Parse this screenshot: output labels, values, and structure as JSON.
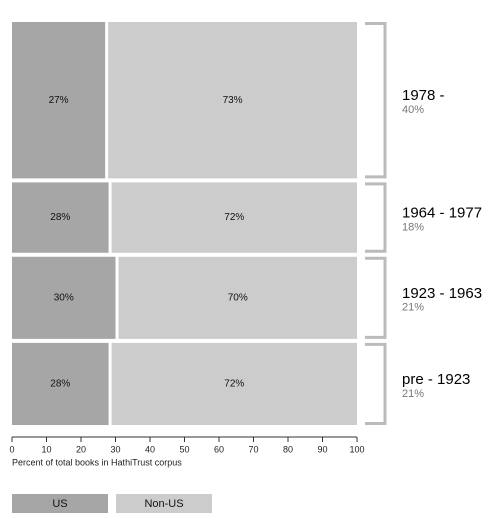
{
  "chart_data": {
    "type": "mekko",
    "categories": [
      "1978 -",
      "1964 - 1977",
      "1923 - 1963",
      "pre - 1923"
    ],
    "row_share": {
      "values": [
        40,
        18,
        21,
        21
      ],
      "value_labels": [
        "40%",
        "18%",
        "21%",
        "21%"
      ]
    },
    "series": [
      {
        "name": "US",
        "color": "#a6a6a6",
        "values": [
          27,
          28,
          30,
          28
        ],
        "value_labels": [
          "27%",
          "28%",
          "30%",
          "28%"
        ]
      },
      {
        "name": "Non-US",
        "color": "#cccccc",
        "values": [
          73,
          72,
          70,
          72
        ],
        "value_labels": [
          "73%",
          "72%",
          "70%",
          "72%"
        ]
      }
    ],
    "xlabel": "Percent of total books in HathiTrust corpus",
    "xlim": [
      0,
      100
    ],
    "xticks": [
      0,
      10,
      20,
      30,
      40,
      50,
      60,
      70,
      80,
      90,
      100
    ],
    "legend": "bottom-left"
  }
}
